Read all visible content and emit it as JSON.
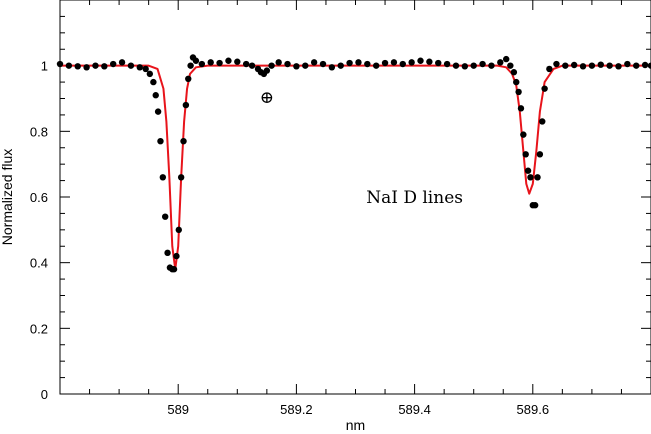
{
  "chart_data": {
    "type": "line",
    "title": "",
    "xlabel": "nm",
    "ylabel": "Normalized flux",
    "xlim": [
      588.8,
      589.8
    ],
    "ylim": [
      0,
      1.2
    ],
    "x_ticks": [
      589,
      589.2,
      589.4,
      589.6
    ],
    "x_tick_labels": [
      "589",
      "589.2",
      "589.4",
      "589.6"
    ],
    "y_ticks": [
      0,
      0.2,
      0.4,
      0.6,
      0.8,
      1
    ],
    "y_tick_labels": [
      "0",
      "0.2",
      "0.4",
      "0.6",
      "0.8",
      "1"
    ],
    "grid": false,
    "annotations": [
      {
        "text": "NaI  D  lines",
        "x": 589.4,
        "y": 0.6
      },
      {
        "text": "⊕",
        "x": 589.15,
        "y": 0.905
      }
    ],
    "series": [
      {
        "kind": "fit",
        "color": "#e8141b",
        "x": [
          588.8,
          588.9,
          588.95,
          588.965,
          588.975,
          588.98,
          588.985,
          588.99,
          588.995,
          589.0,
          589.005,
          589.01,
          589.015,
          589.02,
          589.03,
          589.05,
          589.2,
          589.4,
          589.54,
          589.555,
          589.565,
          589.572,
          589.578,
          589.584,
          589.589,
          589.594,
          589.6,
          589.606,
          589.612,
          589.62,
          589.635,
          589.65,
          589.8
        ],
        "y": [
          1.0,
          1.0,
          1.0,
          0.99,
          0.93,
          0.83,
          0.66,
          0.45,
          0.38,
          0.45,
          0.66,
          0.83,
          0.93,
          0.975,
          0.995,
          1.0,
          1.0,
          1.0,
          1.0,
          0.995,
          0.975,
          0.94,
          0.86,
          0.74,
          0.64,
          0.61,
          0.64,
          0.74,
          0.86,
          0.95,
          0.99,
          1.0,
          1.0
        ]
      },
      {
        "kind": "observed",
        "color": "#000000",
        "x": [
          588.8,
          588.815,
          588.83,
          588.845,
          588.86,
          588.875,
          588.89,
          588.905,
          588.92,
          588.935,
          588.945,
          588.952,
          588.958,
          588.962,
          588.966,
          588.97,
          588.974,
          588.978,
          588.982,
          588.986,
          588.99,
          588.993,
          588.997,
          589.001,
          589.005,
          589.009,
          589.013,
          589.017,
          589.021,
          589.025,
          589.03,
          589.04,
          589.055,
          589.07,
          589.085,
          589.1,
          589.115,
          589.125,
          589.135,
          589.14,
          589.145,
          589.15,
          589.158,
          589.17,
          589.185,
          589.2,
          589.215,
          589.23,
          589.245,
          589.26,
          589.275,
          589.29,
          589.305,
          589.32,
          589.335,
          589.35,
          589.365,
          589.38,
          589.395,
          589.41,
          589.425,
          589.44,
          589.455,
          589.47,
          589.485,
          589.5,
          589.515,
          589.53,
          589.545,
          589.555,
          589.562,
          589.568,
          589.572,
          589.576,
          589.58,
          589.584,
          589.588,
          589.592,
          589.596,
          589.6,
          589.604,
          589.608,
          589.612,
          589.616,
          589.62,
          589.628,
          589.64,
          589.655,
          589.67,
          589.685,
          589.7,
          589.715,
          589.73,
          589.745,
          589.76,
          589.775,
          589.79,
          589.8
        ],
        "y": [
          1.005,
          1.0,
          0.998,
          0.995,
          1.0,
          0.998,
          1.005,
          1.01,
          1.0,
          0.995,
          0.99,
          0.975,
          0.95,
          0.91,
          0.86,
          0.77,
          0.66,
          0.54,
          0.43,
          0.385,
          0.38,
          0.38,
          0.42,
          0.5,
          0.66,
          0.77,
          0.88,
          0.96,
          1.0,
          1.025,
          1.015,
          1.005,
          1.01,
          1.008,
          1.015,
          1.012,
          1.005,
          1.0,
          0.99,
          0.98,
          0.975,
          0.985,
          1.0,
          1.01,
          1.005,
          0.998,
          1.0,
          1.01,
          1.005,
          0.995,
          1.0,
          1.008,
          1.01,
          1.005,
          1.0,
          1.008,
          1.01,
          1.005,
          1.01,
          1.015,
          1.012,
          1.008,
          1.005,
          1.0,
          0.998,
          1.0,
          1.005,
          1.0,
          1.01,
          1.02,
          1.0,
          0.98,
          0.95,
          0.92,
          0.87,
          0.79,
          0.73,
          0.68,
          0.66,
          0.575,
          0.575,
          0.66,
          0.73,
          0.83,
          0.93,
          0.99,
          1.005,
          1.0,
          1.002,
          0.998,
          1.0,
          1.003,
          1.0,
          0.998,
          1.005,
          1.0,
          1.002,
          1.0
        ]
      }
    ]
  }
}
